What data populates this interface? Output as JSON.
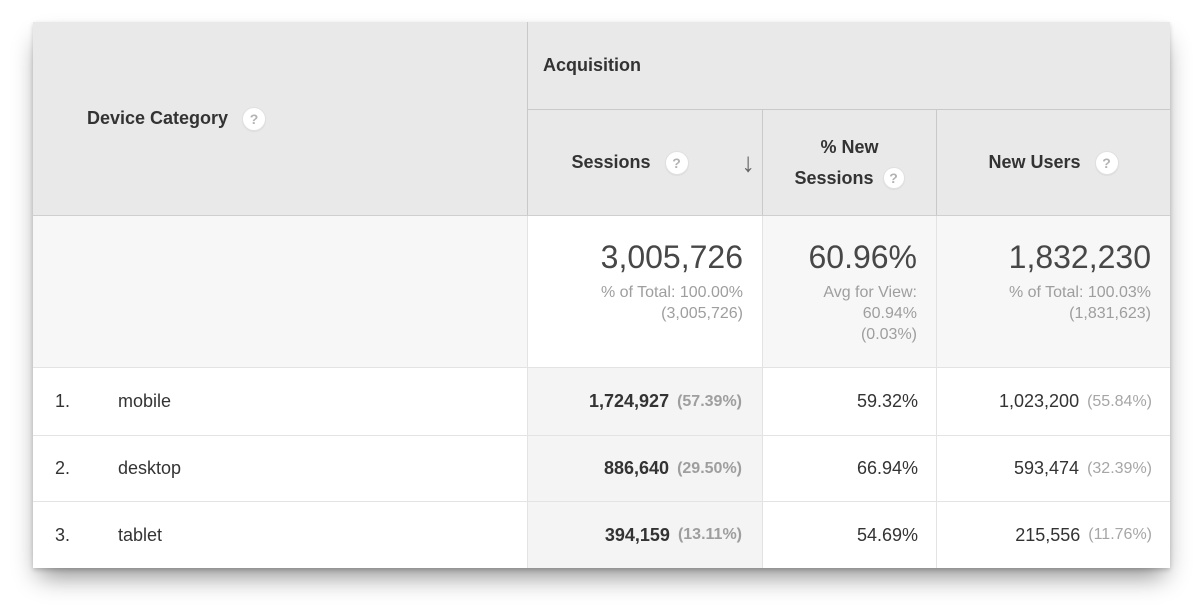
{
  "icons": {
    "help": "?",
    "sort_descending": "↓"
  },
  "colors": {
    "header_bg": "#e9e9e9",
    "summary_row_bg": "#f7f7f7",
    "sorted_column_bg": "#f4f4f4",
    "header_border": "#c9c9c9",
    "body_border": "#e3e3e3",
    "text_primary": "#333333",
    "text_secondary": "#9e9e9e"
  },
  "table": {
    "dimension_header": "Device Category",
    "group_header": "Acquisition",
    "columns": {
      "sessions": "Sessions",
      "pct_new_line1": "% New",
      "pct_new_line2": "Sessions",
      "new_users": "New Users"
    },
    "summary": {
      "sessions_value": "3,005,726",
      "sessions_sub1": "% of Total: 100.00%",
      "sessions_sub2": "(3,005,726)",
      "pct_new_value": "60.96%",
      "pct_new_sub1": "Avg for View:",
      "pct_new_sub2": "60.94%",
      "pct_new_sub3": "(0.03%)",
      "new_users_value": "1,832,230",
      "new_users_sub1": "% of Total: 100.03%",
      "new_users_sub2": "(1,831,623)"
    },
    "rows": [
      {
        "rank": "1.",
        "device": "mobile",
        "sessions": "1,724,927",
        "sessions_pct": "(57.39%)",
        "pct_new_sessions": "59.32%",
        "new_users": "1,023,200",
        "new_users_pct": "(55.84%)"
      },
      {
        "rank": "2.",
        "device": "desktop",
        "sessions": "886,640",
        "sessions_pct": "(29.50%)",
        "pct_new_sessions": "66.94%",
        "new_users": "593,474",
        "new_users_pct": "(32.39%)"
      },
      {
        "rank": "3.",
        "device": "tablet",
        "sessions": "394,159",
        "sessions_pct": "(13.11%)",
        "pct_new_sessions": "54.69%",
        "new_users": "215,556",
        "new_users_pct": "(11.76%)"
      }
    ]
  }
}
